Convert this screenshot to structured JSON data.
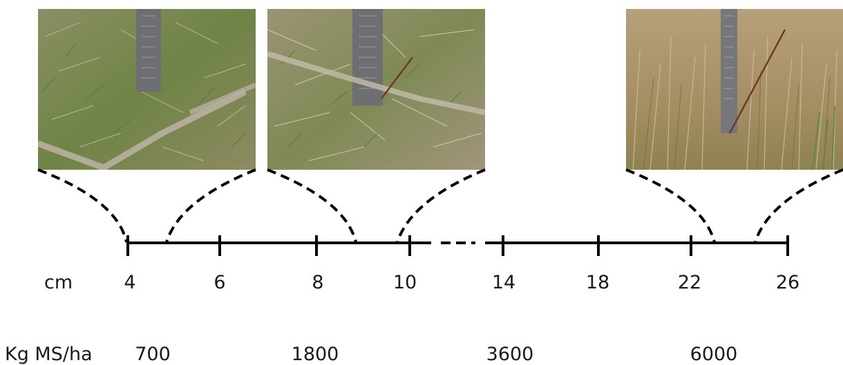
{
  "rows": [
    {
      "label": "cm",
      "values": [
        "4",
        "6",
        "8",
        "10",
        "14",
        "18",
        "22",
        "26"
      ]
    },
    {
      "label": "Kg MS/ha",
      "values": [
        "700",
        "1800",
        "3600",
        "6000"
      ]
    }
  ],
  "photos": [
    {
      "name": "pasture-photo-short",
      "tone": "green"
    },
    {
      "name": "pasture-photo-medium",
      "tone": "mixed"
    },
    {
      "name": "pasture-photo-tall",
      "tone": "dry"
    }
  ],
  "colors": {
    "line": "#000000",
    "grass_green": "#7a8a4a",
    "grass_dry": "#b59a6a",
    "ruler": "#6e6f72"
  }
}
